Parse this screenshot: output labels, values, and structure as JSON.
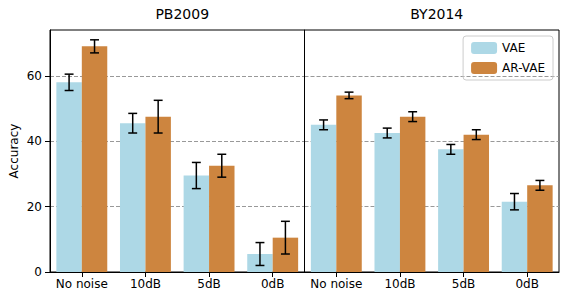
{
  "chart_data": [
    {
      "type": "bar",
      "title": "PB2009",
      "y_label": "Accuracy",
      "categories": [
        "No noise",
        "10dB",
        "5dB",
        "0dB"
      ],
      "series": [
        {
          "name": "VAE",
          "color": "#add8e6",
          "values": [
            58,
            45.5,
            29.5,
            5.5
          ],
          "errors": [
            2.5,
            3,
            4,
            3.5
          ]
        },
        {
          "name": "AR-VAE",
          "color": "#cd853f",
          "values": [
            69,
            47.5,
            32.5,
            10.5
          ],
          "errors": [
            2,
            5,
            3.5,
            5
          ]
        }
      ],
      "ylim": [
        0,
        74
      ],
      "yticks": [
        0,
        20,
        40,
        60
      ],
      "grid": true
    },
    {
      "type": "bar",
      "title": "BY2014",
      "categories": [
        "No noise",
        "10dB",
        "5dB",
        "0dB"
      ],
      "series": [
        {
          "name": "VAE",
          "color": "#add8e6",
          "values": [
            45,
            42.5,
            37.5,
            21.5
          ],
          "errors": [
            1.5,
            1.5,
            1.5,
            2.5
          ]
        },
        {
          "name": "AR-VAE",
          "color": "#cd853f",
          "values": [
            54,
            47.5,
            42,
            26.5
          ],
          "errors": [
            1,
            1.5,
            1.5,
            1.5
          ]
        }
      ],
      "ylim": [
        0,
        74
      ],
      "yticks": [
        0,
        20,
        40,
        60
      ],
      "grid": true,
      "tick_labels": "x",
      "legend": "upper right"
    }
  ]
}
